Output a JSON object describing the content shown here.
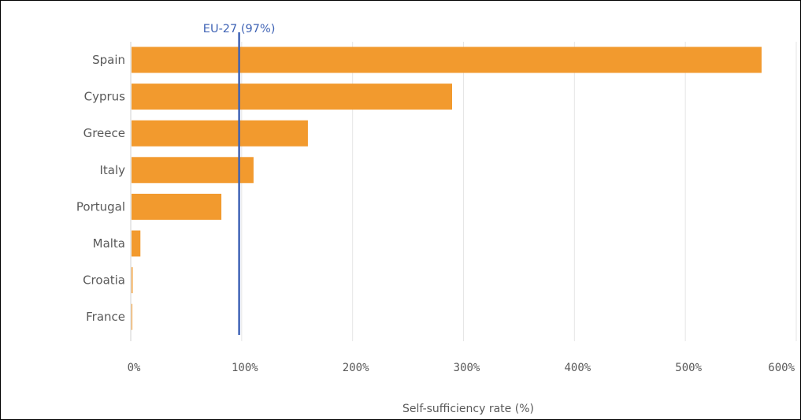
{
  "chart_data": {
    "type": "bar",
    "orientation": "horizontal",
    "categories": [
      "Spain",
      "Cyprus",
      "Greece",
      "Italy",
      "Portugal",
      "Malta",
      "Croatia",
      "France"
    ],
    "values": [
      568,
      289,
      159,
      110,
      81,
      8,
      1,
      0.5
    ],
    "xlabel": "Self-sufficiency rate (%)",
    "xlim": [
      0,
      600
    ],
    "xticks": [
      0,
      100,
      200,
      300,
      400,
      500,
      600
    ],
    "xtick_labels": [
      "0%",
      "100%",
      "200%",
      "300%",
      "400%",
      "500%",
      "600%"
    ],
    "grid": "vertical",
    "reference_line": {
      "value": 97,
      "label": "EU-27 (97%)",
      "color": "#3f63b5"
    },
    "bar_color": "#f29a2e"
  }
}
